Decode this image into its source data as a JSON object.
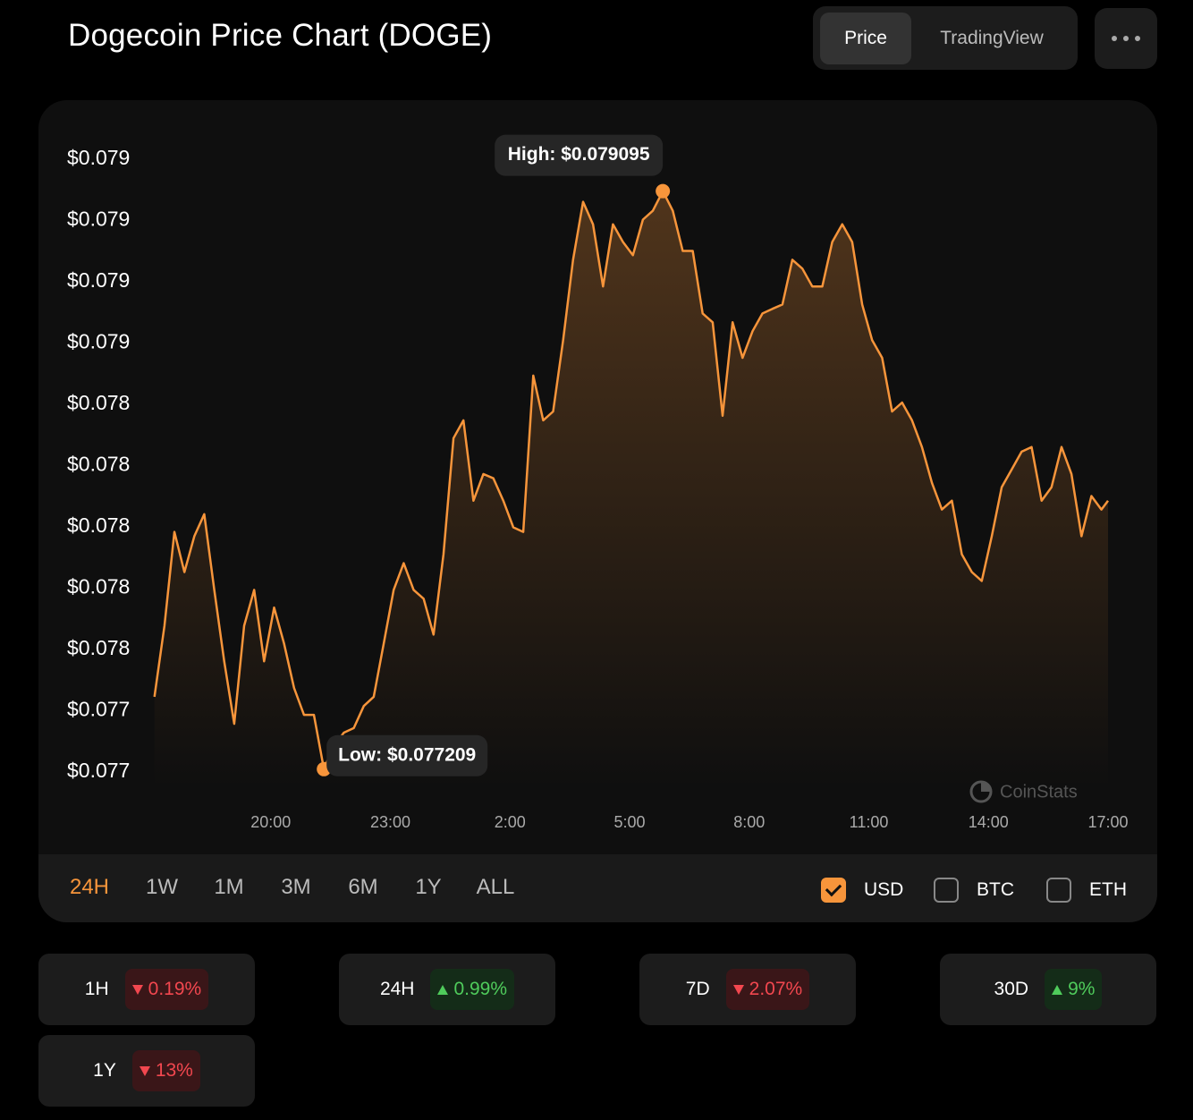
{
  "header": {
    "title": "Dogecoin Price Chart (DOGE)",
    "tabs": [
      {
        "label": "Price",
        "active": true
      },
      {
        "label": "TradingView",
        "active": false
      }
    ]
  },
  "chart_data": {
    "type": "line",
    "x": [
      "17:05",
      "17:20",
      "17:35",
      "17:50",
      "18:05",
      "18:20",
      "18:35",
      "18:50",
      "19:05",
      "19:20",
      "19:35",
      "19:50",
      "20:05",
      "20:20",
      "20:35",
      "20:50",
      "21:05",
      "21:20",
      "21:35",
      "21:50",
      "22:05",
      "22:20",
      "22:35",
      "22:50",
      "23:05",
      "23:20",
      "23:35",
      "23:50",
      "00:05",
      "00:20",
      "00:35",
      "00:50",
      "01:05",
      "01:20",
      "01:35",
      "01:50",
      "02:05",
      "02:20",
      "02:35",
      "02:50",
      "03:05",
      "03:20",
      "03:35",
      "03:50",
      "04:05",
      "04:20",
      "04:35",
      "04:50",
      "05:05",
      "05:20",
      "05:35",
      "05:50",
      "06:05",
      "06:20",
      "06:35",
      "06:50",
      "07:05",
      "07:20",
      "07:35",
      "07:50",
      "08:05",
      "08:20",
      "08:35",
      "08:50",
      "09:05",
      "09:20",
      "09:35",
      "09:50",
      "10:05",
      "10:20",
      "10:35",
      "10:50",
      "11:05",
      "11:20",
      "11:35",
      "11:50",
      "12:05",
      "12:20",
      "12:35",
      "12:50",
      "13:05",
      "13:20",
      "13:35",
      "13:50",
      "14:05",
      "14:20",
      "14:35",
      "14:50",
      "15:05",
      "15:20",
      "15:35",
      "15:50",
      "16:05",
      "16:20",
      "16:35",
      "16:50",
      "17:00"
    ],
    "series": [
      {
        "color": "#f7953b",
        "values": [
          0.077445,
          0.077677,
          0.077983,
          0.077852,
          0.077969,
          0.078041,
          0.077794,
          0.077561,
          0.077357,
          0.077677,
          0.077794,
          0.077561,
          0.077736,
          0.077619,
          0.077474,
          0.077386,
          0.077386,
          0.077209,
          0.077284,
          0.077328,
          0.077343,
          0.077415,
          0.077445,
          0.077619,
          0.077794,
          0.077881,
          0.077794,
          0.077765,
          0.077648,
          0.07791,
          0.078289,
          0.078347,
          0.078085,
          0.078172,
          0.078158,
          0.078085,
          0.077998,
          0.077983,
          0.078493,
          0.078347,
          0.078376,
          0.078609,
          0.078871,
          0.07906,
          0.078987,
          0.078784,
          0.078987,
          0.078929,
          0.078886,
          0.079002,
          0.079031,
          0.079095,
          0.079031,
          0.0789,
          0.0789,
          0.078696,
          0.078667,
          0.078362,
          0.078667,
          0.078551,
          0.078638,
          0.078696,
          0.078711,
          0.078725,
          0.078871,
          0.078842,
          0.078784,
          0.078784,
          0.078929,
          0.078987,
          0.078929,
          0.078725,
          0.078609,
          0.078551,
          0.078376,
          0.078405,
          0.078347,
          0.07826,
          0.078143,
          0.078056,
          0.078085,
          0.07791,
          0.077852,
          0.077823,
          0.077969,
          0.078129,
          0.078187,
          0.078245,
          0.07826,
          0.078085,
          0.078129,
          0.07826,
          0.078172,
          0.077969,
          0.0781,
          0.078056,
          0.078085
        ]
      }
    ],
    "xlim": [
      "17:00",
      "17:00"
    ],
    "xticks": [
      "20:00",
      "23:00",
      "2:00",
      "5:00",
      "8:00",
      "11:00",
      "14:00",
      "17:00"
    ],
    "ylim": [
      0.07715,
      0.07931
    ],
    "yticks": [
      {
        "value": 0.0772,
        "label": "$0.077"
      },
      {
        "value": 0.0774,
        "label": "$0.077"
      },
      {
        "value": 0.0776,
        "label": "$0.078"
      },
      {
        "value": 0.0778,
        "label": "$0.078"
      },
      {
        "value": 0.078,
        "label": "$0.078"
      },
      {
        "value": 0.0782,
        "label": "$0.078"
      },
      {
        "value": 0.0784,
        "label": "$0.078"
      },
      {
        "value": 0.0786,
        "label": "$0.079"
      },
      {
        "value": 0.0788,
        "label": "$0.079"
      },
      {
        "value": 0.079,
        "label": "$0.079"
      },
      {
        "value": 0.0792,
        "label": "$0.079"
      }
    ],
    "high_label": "High: $0.079095",
    "low_label": "Low: $0.077209",
    "watermark": "CoinStats"
  },
  "ranges": [
    {
      "label": "24H",
      "active": true
    },
    {
      "label": "1W",
      "active": false
    },
    {
      "label": "1M",
      "active": false
    },
    {
      "label": "3M",
      "active": false
    },
    {
      "label": "6M",
      "active": false
    },
    {
      "label": "1Y",
      "active": false
    },
    {
      "label": "ALL",
      "active": false
    }
  ],
  "currencies": [
    {
      "label": "USD",
      "checked": true
    },
    {
      "label": "BTC",
      "checked": false
    },
    {
      "label": "ETH",
      "checked": false
    }
  ],
  "stats": [
    {
      "period": "1H",
      "change": "0.19%",
      "direction": "down"
    },
    {
      "period": "24H",
      "change": "0.99%",
      "direction": "up"
    },
    {
      "period": "7D",
      "change": "2.07%",
      "direction": "down"
    },
    {
      "period": "30D",
      "change": "9%",
      "direction": "up"
    },
    {
      "period": "1Y",
      "change": "13%",
      "direction": "down"
    }
  ]
}
